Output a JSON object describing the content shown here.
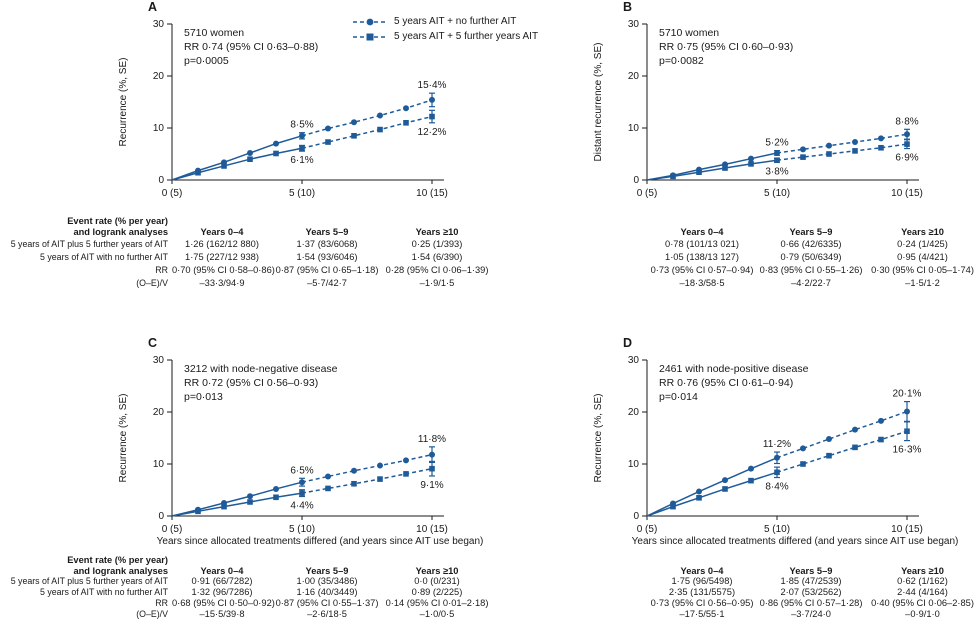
{
  "figure": {
    "accent_color": "#1f5b99",
    "text_color": "#1a1a1a",
    "x_axis_title": "Years since allocated treatments differed (and years since AIT use began)",
    "legend": [
      {
        "marker": "circle",
        "label": "5 years AIT + no further AIT"
      },
      {
        "marker": "square",
        "label": "5 years AIT + 5 further years AIT"
      }
    ],
    "table": {
      "header_label_line1": "Event rate (% per year)",
      "header_label_line2": "and logrank analyses",
      "columns": [
        "Years 0–4",
        "Years 5–9",
        "Years ≥10"
      ],
      "row_labels": [
        "5 years of AIT plus 5 further years of AIT",
        "5 years of AIT with no further AIT",
        "RR",
        "(O–E)/V"
      ]
    }
  },
  "chart_data": [
    {
      "id": "A",
      "type": "line",
      "title_lines": [
        "5710 women",
        "RR 0·74 (95% CI 0·63–0·88)",
        "p=0·0005"
      ],
      "ylabel": "Recurrence (%, SE)",
      "ylim": [
        0,
        30
      ],
      "yticks": [
        0,
        10,
        20,
        30
      ],
      "xticks": [
        {
          "x": 0,
          "label": "0 (5)"
        },
        {
          "x": 5,
          "label": "5 (10)"
        },
        {
          "x": 10,
          "label": "10 (15)"
        }
      ],
      "x": [
        0,
        1,
        2,
        3,
        4,
        5,
        6,
        7,
        8,
        9,
        10
      ],
      "series": [
        {
          "name": "5 years AIT + no further AIT",
          "marker": "circle",
          "values": [
            0,
            1.8,
            3.4,
            5.2,
            7.0,
            8.5,
            9.9,
            11.1,
            12.4,
            13.8,
            15.4
          ],
          "error_bars": [
            {
              "x": 5,
              "se": 0.6
            },
            {
              "x": 10,
              "se": 1.3
            }
          ]
        },
        {
          "name": "5 years AIT + 5 further years AIT",
          "marker": "square",
          "values": [
            0,
            1.4,
            2.7,
            4.0,
            5.1,
            6.1,
            7.3,
            8.5,
            9.7,
            11.0,
            12.2
          ],
          "error_bars": [
            {
              "x": 5,
              "se": 0.55
            },
            {
              "x": 10,
              "se": 1.2
            }
          ]
        }
      ],
      "annotations": [
        {
          "x": 5,
          "series": 0,
          "text": "8·5%",
          "pos": "above"
        },
        {
          "x": 5,
          "series": 1,
          "text": "6·1%",
          "pos": "below"
        },
        {
          "x": 10,
          "series": 0,
          "text": "15·4%",
          "pos": "above"
        },
        {
          "x": 10,
          "series": 1,
          "text": "12·2%",
          "pos": "below"
        }
      ],
      "table_values": [
        [
          "1·26 (162/12 880)",
          "1·37 (83/6068)",
          "0·25 (1/393)"
        ],
        [
          "1·75 (227/12 938)",
          "1·54 (93/6046)",
          "1·54 (6/390)"
        ],
        [
          "0·70 (95% CI 0·58–0·86)",
          "0·87 (95% CI 0·65–1·18)",
          "0·28 (95% CI 0·06–1·39)"
        ],
        [
          "–33·3/94·9",
          "–5·7/42·7",
          "–1·9/1·5"
        ]
      ]
    },
    {
      "id": "B",
      "type": "line",
      "title_lines": [
        "5710 women",
        "RR 0·75 (95% CI 0·60–0·93)",
        "p=0·0082"
      ],
      "ylabel": "Distant recurrence (%, SE)",
      "ylim": [
        0,
        30
      ],
      "yticks": [
        0,
        10,
        20,
        30
      ],
      "xticks": [
        {
          "x": 0,
          "label": "0 (5)"
        },
        {
          "x": 5,
          "label": "5 (10)"
        },
        {
          "x": 10,
          "label": "10 (15)"
        }
      ],
      "x": [
        0,
        1,
        2,
        3,
        4,
        5,
        6,
        7,
        8,
        9,
        10
      ],
      "series": [
        {
          "name": "5 years AIT + no further AIT",
          "marker": "circle",
          "values": [
            0,
            0.9,
            2.0,
            3.0,
            4.1,
            5.2,
            5.9,
            6.6,
            7.3,
            8.0,
            8.8
          ],
          "error_bars": [
            {
              "x": 5,
              "se": 0.45
            },
            {
              "x": 10,
              "se": 0.95
            }
          ]
        },
        {
          "name": "5 years AIT + 5 further years AIT",
          "marker": "square",
          "values": [
            0,
            0.7,
            1.5,
            2.3,
            3.1,
            3.8,
            4.4,
            5.0,
            5.6,
            6.2,
            6.9
          ],
          "error_bars": [
            {
              "x": 5,
              "se": 0.4
            },
            {
              "x": 10,
              "se": 0.85
            }
          ]
        }
      ],
      "annotations": [
        {
          "x": 5,
          "series": 0,
          "text": "5·2%",
          "pos": "above"
        },
        {
          "x": 5,
          "series": 1,
          "text": "3·8%",
          "pos": "below"
        },
        {
          "x": 10,
          "series": 0,
          "text": "8·8%",
          "pos": "above"
        },
        {
          "x": 10,
          "series": 1,
          "text": "6·9%",
          "pos": "below"
        }
      ],
      "table_values": [
        [
          "0·78 (101/13 021)",
          "0·66 (42/6335)",
          "0·24 (1/425)"
        ],
        [
          "1·05 (138/13 127)",
          "0·79 (50/6349)",
          "0·95 (4/421)"
        ],
        [
          "0·73 (95% CI 0·57–0·94)",
          "0·83 (95% CI 0·55–1·26)",
          "0·30 (95% CI 0·05–1·74)"
        ],
        [
          "–18·3/58·5",
          "–4·2/22·7",
          "–1·5/1·2"
        ]
      ]
    },
    {
      "id": "C",
      "type": "line",
      "title_lines": [
        "3212 with node-negative disease",
        "RR 0·72 (95% CI 0·56–0·93)",
        "p=0·013"
      ],
      "ylabel": "Recurrence (%, SE)",
      "ylim": [
        0,
        30
      ],
      "yticks": [
        0,
        10,
        20,
        30
      ],
      "xticks": [
        {
          "x": 0,
          "label": "0 (5)"
        },
        {
          "x": 5,
          "label": "5 (10)"
        },
        {
          "x": 10,
          "label": "10 (15)"
        }
      ],
      "x": [
        0,
        1,
        2,
        3,
        4,
        5,
        6,
        7,
        8,
        9,
        10
      ],
      "series": [
        {
          "name": "5 years AIT + no further AIT",
          "marker": "circle",
          "values": [
            0,
            1.2,
            2.5,
            3.8,
            5.2,
            6.5,
            7.6,
            8.7,
            9.7,
            10.7,
            11.8
          ],
          "error_bars": [
            {
              "x": 5,
              "se": 0.75
            },
            {
              "x": 10,
              "se": 1.5
            }
          ]
        },
        {
          "name": "5 years AIT + 5 further years AIT",
          "marker": "square",
          "values": [
            0,
            0.9,
            1.8,
            2.7,
            3.6,
            4.4,
            5.3,
            6.2,
            7.1,
            8.1,
            9.1
          ],
          "error_bars": [
            {
              "x": 5,
              "se": 0.65
            },
            {
              "x": 10,
              "se": 1.4
            }
          ]
        }
      ],
      "annotations": [
        {
          "x": 5,
          "series": 0,
          "text": "6·5%",
          "pos": "above"
        },
        {
          "x": 5,
          "series": 1,
          "text": "4·4%",
          "pos": "below"
        },
        {
          "x": 10,
          "series": 0,
          "text": "11·8%",
          "pos": "above"
        },
        {
          "x": 10,
          "series": 1,
          "text": "9·1%",
          "pos": "below"
        }
      ],
      "table_values": [
        [
          "0·91 (66/7282)",
          "1·00 (35/3486)",
          "0·0 (0/231)"
        ],
        [
          "1·32 (96/7286)",
          "1·16 (40/3449)",
          "0·89 (2/225)"
        ],
        [
          "0·68 (95% CI 0·50–0·92)",
          "0·87 (95% CI 0·55–1·37)",
          "0·14 (95% CI 0·01–2·18)"
        ],
        [
          "–15·5/39·8",
          "–2·6/18·5",
          "–1·0/0·5"
        ]
      ]
    },
    {
      "id": "D",
      "type": "line",
      "title_lines": [
        "2461 with node-positive disease",
        "RR 0·76 (95% CI 0·61–0·94)",
        "p=0·014"
      ],
      "ylabel": "Recurrence (%, SE)",
      "ylim": [
        0,
        30
      ],
      "yticks": [
        0,
        10,
        20,
        30
      ],
      "xticks": [
        {
          "x": 0,
          "label": "0 (5)"
        },
        {
          "x": 5,
          "label": "5 (10)"
        },
        {
          "x": 10,
          "label": "10 (15)"
        }
      ],
      "x": [
        0,
        1,
        2,
        3,
        4,
        5,
        6,
        7,
        8,
        9,
        10
      ],
      "series": [
        {
          "name": "5 years AIT + no further AIT",
          "marker": "circle",
          "values": [
            0,
            2.4,
            4.7,
            6.9,
            9.1,
            11.2,
            13.0,
            14.8,
            16.6,
            18.3,
            20.1
          ],
          "error_bars": [
            {
              "x": 5,
              "se": 1.1
            },
            {
              "x": 10,
              "se": 1.9
            }
          ]
        },
        {
          "name": "5 years AIT + 5 further years AIT",
          "marker": "square",
          "values": [
            0,
            1.8,
            3.5,
            5.2,
            6.8,
            8.4,
            10.0,
            11.6,
            13.2,
            14.7,
            16.3
          ],
          "error_bars": [
            {
              "x": 5,
              "se": 1.0
            },
            {
              "x": 10,
              "se": 1.8
            }
          ]
        }
      ],
      "annotations": [
        {
          "x": 5,
          "series": 0,
          "text": "11·2%",
          "pos": "above"
        },
        {
          "x": 5,
          "series": 1,
          "text": "8·4%",
          "pos": "below"
        },
        {
          "x": 10,
          "series": 0,
          "text": "20·1%",
          "pos": "above"
        },
        {
          "x": 10,
          "series": 1,
          "text": "16·3%",
          "pos": "below"
        }
      ],
      "table_values": [
        [
          "1·75 (96/5498)",
          "1·85 (47/2539)",
          "0·62 (1/162)"
        ],
        [
          "2·35 (131/5575)",
          "2·07 (53/2562)",
          "2·44 (4/164)"
        ],
        [
          "0·73 (95% CI 0·56–0·95)",
          "0·86 (95% CI 0·57–1·28)",
          "0·40 (95% CI 0·06–2·85)"
        ],
        [
          "–17·5/55·1",
          "–3·7/24·0",
          "–0·9/1·0"
        ]
      ]
    }
  ]
}
